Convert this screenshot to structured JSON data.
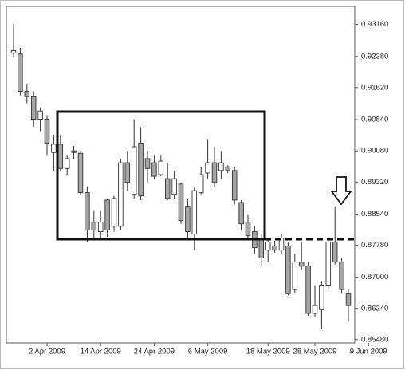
{
  "chart_data": {
    "type": "candlestick",
    "categories": [
      null,
      null,
      null,
      null,
      null,
      "2 Apr 2009",
      null,
      null,
      null,
      null,
      null,
      null,
      null,
      "14 Apr 2009",
      null,
      null,
      null,
      null,
      null,
      null,
      null,
      "24 Apr 2009",
      null,
      null,
      null,
      null,
      null,
      null,
      null,
      "6 May 2009",
      null,
      null,
      null,
      null,
      null,
      null,
      null,
      null,
      "18 May 2009",
      null,
      null,
      null,
      null,
      null,
      null,
      "28 May 2009",
      null,
      null,
      null,
      null,
      null,
      null,
      null,
      "9 Jun 2009"
    ],
    "open": [
      0.9246,
      0.9244,
      0.9153,
      0.914,
      0.9085,
      0.9085,
      0.9004,
      0.9024,
      0.8965,
      0.9008,
      0.9002,
      0.8906,
      0.8834,
      0.8811,
      0.8888,
      0.8824,
      0.8824,
      0.8979,
      0.8902,
      0.9027,
      0.8989,
      0.8979,
      0.895,
      0.894,
      0.8902,
      0.8927,
      0.8873,
      0.8805,
      0.8906,
      0.8954,
      0.8979,
      0.896,
      0.8969,
      0.896,
      0.8882,
      0.8834,
      0.8811,
      0.8795,
      0.8766,
      0.8776,
      0.8766,
      0.8776,
      0.867,
      0.8737,
      0.8727,
      0.8612,
      0.8621,
      0.8679,
      0.8786,
      0.8737,
      0.866,
      null,
      null,
      null
    ],
    "high": [
      0.9318,
      0.9259,
      0.9172,
      0.9153,
      0.9114,
      0.9095,
      0.9047,
      0.9047,
      0.8998,
      0.902,
      0.9008,
      0.8921,
      0.8863,
      0.8863,
      0.8892,
      0.8898,
      0.8989,
      0.9008,
      0.9085,
      0.9066,
      0.9008,
      0.8998,
      0.8998,
      0.8979,
      0.896,
      0.8931,
      0.8892,
      0.8921,
      0.8969,
      0.9037,
      0.9018,
      0.9008,
      0.8973,
      0.8969,
      0.8888,
      0.8853,
      0.8824,
      0.8805,
      0.8795,
      0.8789,
      0.8805,
      0.8786,
      0.8757,
      0.8786,
      0.8737,
      0.8679,
      0.8689,
      0.8795,
      0.8873,
      0.8747,
      0.867,
      null,
      null,
      null
    ],
    "low": [
      0.9236,
      0.9143,
      0.9124,
      0.9066,
      0.9056,
      0.8998,
      0.896,
      0.896,
      0.895,
      0.8989,
      0.8902,
      0.8786,
      0.8795,
      0.8795,
      0.8799,
      0.8811,
      0.8815,
      0.8911,
      0.8892,
      0.8888,
      0.8931,
      0.894,
      0.8946,
      0.8888,
      0.8892,
      0.883,
      0.8795,
      0.8766,
      0.8902,
      0.894,
      0.8921,
      0.894,
      0.8954,
      0.8877,
      0.8815,
      0.8795,
      0.8757,
      0.8727,
      0.8737,
      0.876,
      0.8757,
      0.8656,
      0.866,
      0.8718,
      0.8606,
      0.8602,
      0.8573,
      0.867,
      0.8731,
      0.866,
      0.8592,
      null,
      null,
      null
    ],
    "close": [
      0.9252,
      0.9153,
      0.914,
      0.9085,
      0.9105,
      0.9027,
      0.9024,
      0.8965,
      0.8989,
      0.9004,
      0.8906,
      0.8815,
      0.8815,
      0.8834,
      0.8815,
      0.8892,
      0.8979,
      0.8931,
      0.9018,
      0.8898,
      0.8965,
      0.8946,
      0.8983,
      0.8892,
      0.894,
      0.8838,
      0.8811,
      0.8911,
      0.895,
      0.8979,
      0.8931,
      0.8979,
      0.896,
      0.8888,
      0.883,
      0.8801,
      0.8772,
      0.8747,
      0.8786,
      0.8766,
      0.8795,
      0.866,
      0.8737,
      0.8727,
      0.8612,
      0.8631,
      0.8679,
      0.8786,
      0.8737,
      0.867,
      0.8631,
      null,
      null,
      null
    ],
    "up_color": "#ffffff",
    "down_color": "#a6a6a6",
    "ylim": [
      0.854,
      0.936
    ],
    "yticks": [
      {
        "value": 0.9316,
        "label": "0.93160"
      },
      {
        "value": 0.9238,
        "label": "0.92380"
      },
      {
        "value": 0.9162,
        "label": "0.91620"
      },
      {
        "value": 0.9084,
        "label": "0.90840"
      },
      {
        "value": 0.9008,
        "label": "0.90080"
      },
      {
        "value": 0.8932,
        "label": "0.89320"
      },
      {
        "value": 0.8854,
        "label": "0.88540"
      },
      {
        "value": 0.8778,
        "label": "0.87780"
      },
      {
        "value": 0.87,
        "label": "0.87000"
      },
      {
        "value": 0.8624,
        "label": "0.86240"
      },
      {
        "value": 0.8548,
        "label": "0.85480"
      }
    ]
  }
}
